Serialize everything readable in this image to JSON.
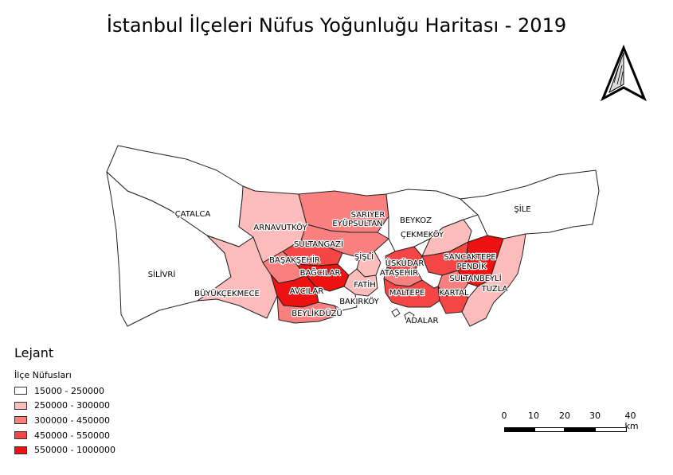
{
  "title": "İstanbul İlçeleri Nüfus Yoğunluğu Haritası - 2019",
  "legend": {
    "title": "Lejant",
    "subtitle": "İlçe Nüfusları",
    "classes": [
      {
        "label": "15000 - 250000",
        "color": "#ffffff"
      },
      {
        "label": "250000 - 300000",
        "color": "#fcbcbc"
      },
      {
        "label": "300000 - 450000",
        "color": "#fa8080"
      },
      {
        "label": "450000 - 550000",
        "color": "#f54545"
      },
      {
        "label": "550000 - 1000000",
        "color": "#ed1111"
      }
    ]
  },
  "districts": [
    {
      "name": "ŞİLE",
      "class": 0
    },
    {
      "name": "ÇATALCA",
      "class": 0
    },
    {
      "name": "SİLİVRİ",
      "class": 0
    },
    {
      "name": "BEYKOZ",
      "class": 0
    },
    {
      "name": "ÇEKMEKÖY",
      "class": 1
    },
    {
      "name": "ARNAVUTKÖY",
      "class": 1
    },
    {
      "name": "SARIYER",
      "class": 2
    },
    {
      "name": "EYÜPSULTAN",
      "class": 2
    },
    {
      "name": "SULTANGAZİ",
      "class": 3
    },
    {
      "name": "BAŞAKŞEHİR",
      "class": 2
    },
    {
      "name": "ŞİŞLİ",
      "class": 1
    },
    {
      "name": "ÜSKÜDAR",
      "class": 3
    },
    {
      "name": "ATAŞEHİR",
      "class": 2
    },
    {
      "name": "SANCAKTEPE",
      "class": 3
    },
    {
      "name": "PENDİK",
      "class": 4
    },
    {
      "name": "BAĞCILAR",
      "class": 4
    },
    {
      "name": "FATİH",
      "class": 1
    },
    {
      "name": "SULTANBEYLİ",
      "class": 2
    },
    {
      "name": "TUZLA",
      "class": 1
    },
    {
      "name": "BÜYÜKÇEKMECE",
      "class": 1
    },
    {
      "name": "AVCILAR",
      "class": 4
    },
    {
      "name": "MALTEPE",
      "class": 3
    },
    {
      "name": "KARTAL",
      "class": 3
    },
    {
      "name": "BAKIRKÖY",
      "class": 0
    },
    {
      "name": "BEYLİKDÜZÜ",
      "class": 2
    },
    {
      "name": "ADALAR",
      "class": 0
    }
  ],
  "scale_bar": {
    "labels": [
      "0",
      "10",
      "20",
      "30",
      "40 km"
    ]
  },
  "north_arrow": {
    "icon": "north-arrow-icon"
  }
}
